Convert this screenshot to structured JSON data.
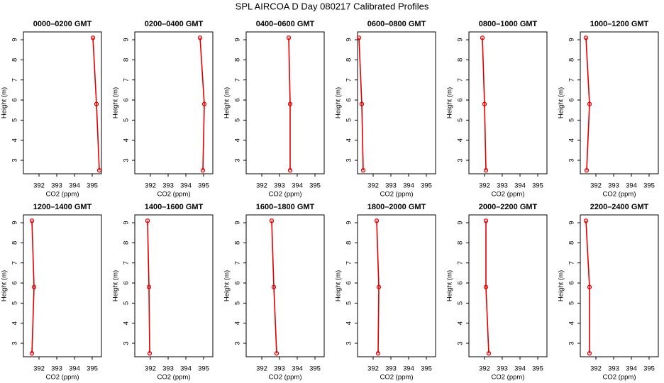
{
  "title": "SPL AIRCOA D  Day 080217  Calibrated Profiles",
  "chart_data": [
    {
      "type": "line",
      "title": "0000–0200 GMT",
      "x_label": "CO2 (ppm)",
      "y_label": "Height (m)",
      "x": [
        395.04,
        395.24,
        395.4
      ],
      "values": [
        9.1,
        5.8,
        2.5
      ],
      "color": "#e00000",
      "xlim": [
        391.12,
        395.52
      ],
      "ylim": [
        2.33,
        9.39
      ],
      "xticks": [
        392,
        393,
        394,
        395
      ],
      "yticks": [
        3,
        4,
        5,
        6,
        7,
        8,
        9
      ]
    },
    {
      "type": "line",
      "title": "0200–0400 GMT",
      "x_label": "CO2 (ppm)",
      "y_label": "Height (m)",
      "x": [
        394.8,
        395.04,
        394.96
      ],
      "values": [
        9.1,
        5.8,
        2.5
      ],
      "color": "#e00000",
      "xlim": [
        391.12,
        395.52
      ],
      "ylim": [
        2.33,
        9.39
      ],
      "xticks": [
        392,
        393,
        394,
        395
      ],
      "yticks": [
        3,
        4,
        5,
        6,
        7,
        8,
        9
      ]
    },
    {
      "type": "line",
      "title": "0400–0600 GMT",
      "x_label": "CO2 (ppm)",
      "y_label": "Height (m)",
      "x": [
        393.52,
        393.6,
        393.6
      ],
      "values": [
        9.1,
        5.8,
        2.5
      ],
      "color": "#e00000",
      "xlim": [
        391.12,
        395.52
      ],
      "ylim": [
        2.33,
        9.39
      ],
      "xticks": [
        392,
        393,
        394,
        395
      ],
      "yticks": [
        3,
        4,
        5,
        6,
        7,
        8,
        9
      ]
    },
    {
      "type": "line",
      "title": "0600–0800 GMT",
      "x_label": "CO2 (ppm)",
      "y_label": "Height (m)",
      "x": [
        391.2,
        391.36,
        391.44
      ],
      "values": [
        9.1,
        5.8,
        2.5
      ],
      "color": "#e00000",
      "xlim": [
        391.12,
        395.52
      ],
      "ylim": [
        2.33,
        9.39
      ],
      "xticks": [
        392,
        393,
        394,
        395
      ],
      "yticks": [
        3,
        4,
        5,
        6,
        7,
        8,
        9
      ]
    },
    {
      "type": "line",
      "title": "0800–1000 GMT",
      "x_label": "CO2 (ppm)",
      "y_label": "Height (m)",
      "x": [
        391.88,
        392.0,
        392.08
      ],
      "values": [
        9.1,
        5.8,
        2.5
      ],
      "color": "#e00000",
      "xlim": [
        391.12,
        395.52
      ],
      "ylim": [
        2.33,
        9.39
      ],
      "xticks": [
        392,
        393,
        394,
        395
      ],
      "yticks": [
        3,
        4,
        5,
        6,
        7,
        8,
        9
      ]
    },
    {
      "type": "line",
      "title": "1000–1200 GMT",
      "x_label": "CO2 (ppm)",
      "y_label": "Height (m)",
      "x": [
        391.44,
        391.64,
        391.48
      ],
      "values": [
        9.1,
        5.8,
        2.5
      ],
      "color": "#e00000",
      "xlim": [
        391.12,
        395.52
      ],
      "ylim": [
        2.33,
        9.39
      ],
      "xticks": [
        392,
        393,
        394,
        395
      ],
      "yticks": [
        3,
        4,
        5,
        6,
        7,
        8,
        9
      ]
    },
    {
      "type": "line",
      "title": "1200–1400 GMT",
      "x_label": "CO2 (ppm)",
      "y_label": "Height (m)",
      "x": [
        391.6,
        391.72,
        391.6
      ],
      "values": [
        9.1,
        5.8,
        2.5
      ],
      "color": "#e00000",
      "xlim": [
        391.12,
        395.52
      ],
      "ylim": [
        2.33,
        9.39
      ],
      "xticks": [
        392,
        393,
        394,
        395
      ],
      "yticks": [
        3,
        4,
        5,
        6,
        7,
        8,
        9
      ]
    },
    {
      "type": "line",
      "title": "1400–1600 GMT",
      "x_label": "CO2 (ppm)",
      "y_label": "Height (m)",
      "x": [
        391.84,
        391.92,
        391.96
      ],
      "values": [
        9.1,
        5.8,
        2.5
      ],
      "color": "#e00000",
      "xlim": [
        391.12,
        395.52
      ],
      "ylim": [
        2.33,
        9.39
      ],
      "xticks": [
        392,
        393,
        394,
        395
      ],
      "yticks": [
        3,
        4,
        5,
        6,
        7,
        8,
        9
      ]
    },
    {
      "type": "line",
      "title": "1600–1800 GMT",
      "x_label": "CO2 (ppm)",
      "y_label": "Height (m)",
      "x": [
        392.56,
        392.68,
        392.84
      ],
      "values": [
        9.1,
        5.8,
        2.5
      ],
      "color": "#e00000",
      "xlim": [
        391.12,
        395.52
      ],
      "ylim": [
        2.33,
        9.39
      ],
      "xticks": [
        392,
        393,
        394,
        395
      ],
      "yticks": [
        3,
        4,
        5,
        6,
        7,
        8,
        9
      ]
    },
    {
      "type": "line",
      "title": "1800–2000 GMT",
      "x_label": "CO2 (ppm)",
      "y_label": "Height (m)",
      "x": [
        392.2,
        392.32,
        392.28
      ],
      "values": [
        9.1,
        5.8,
        2.5
      ],
      "color": "#e00000",
      "xlim": [
        391.12,
        395.52
      ],
      "ylim": [
        2.33,
        9.39
      ],
      "xticks": [
        392,
        393,
        394,
        395
      ],
      "yticks": [
        3,
        4,
        5,
        6,
        7,
        8,
        9
      ]
    },
    {
      "type": "line",
      "title": "2000–2200 GMT",
      "x_label": "CO2 (ppm)",
      "y_label": "Height (m)",
      "x": [
        392.08,
        392.08,
        392.24
      ],
      "values": [
        9.1,
        5.8,
        2.5
      ],
      "color": "#e00000",
      "xlim": [
        391.12,
        395.52
      ],
      "ylim": [
        2.33,
        9.39
      ],
      "xticks": [
        392,
        393,
        394,
        395
      ],
      "yticks": [
        3,
        4,
        5,
        6,
        7,
        8,
        9
      ]
    },
    {
      "type": "line",
      "title": "2200–2400 GMT",
      "x_label": "CO2 (ppm)",
      "y_label": "Height (m)",
      "x": [
        391.44,
        391.64,
        391.64
      ],
      "values": [
        9.1,
        5.8,
        2.5
      ],
      "color": "#e00000",
      "xlim": [
        391.12,
        395.52
      ],
      "ylim": [
        2.33,
        9.39
      ],
      "xticks": [
        392,
        393,
        394,
        395
      ],
      "yticks": [
        3,
        4,
        5,
        6,
        7,
        8,
        9
      ]
    }
  ]
}
